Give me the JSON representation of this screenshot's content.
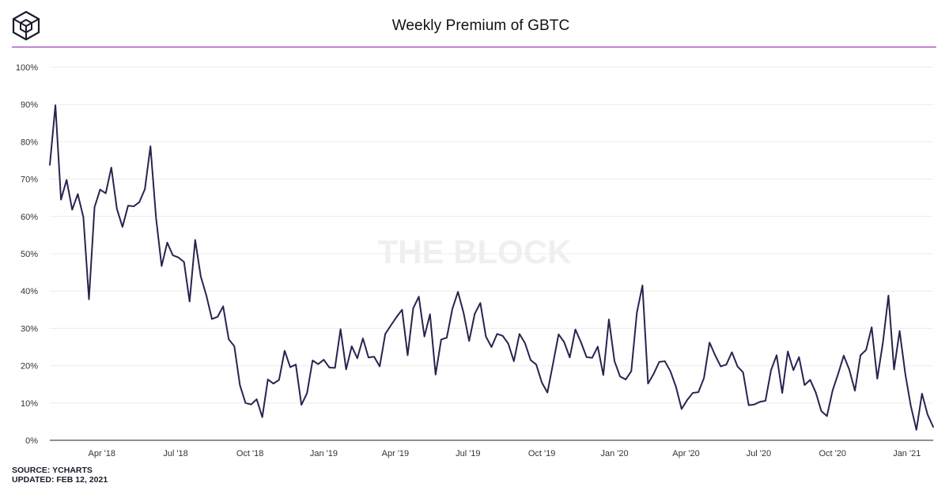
{
  "header": {
    "title": "Weekly Premium of GBTC"
  },
  "watermark": "THE BLOCK",
  "footer": {
    "source": "SOURCE: YCHARTS",
    "updated": "UPDATED: FEB 12, 2021"
  },
  "colors": {
    "line": "#2a2350",
    "accent_rule": "#8a1fa8",
    "grid": "#ececec",
    "watermark": "#efefef"
  },
  "chart_data": {
    "type": "line",
    "title": "Weekly Premium of GBTC",
    "xlabel": "",
    "ylabel": "",
    "ylim": [
      0,
      100
    ],
    "y_ticks": [
      0,
      10,
      20,
      30,
      40,
      50,
      60,
      70,
      80,
      90,
      100
    ],
    "y_tick_labels": [
      "0%",
      "10%",
      "20%",
      "30%",
      "40%",
      "50%",
      "60%",
      "70%",
      "80%",
      "90%",
      "100%"
    ],
    "x_ticks": [
      {
        "x": 9.3,
        "label": "Apr '18"
      },
      {
        "x": 22.5,
        "label": "Jul '18"
      },
      {
        "x": 35.8,
        "label": "Oct '18"
      },
      {
        "x": 49.0,
        "label": "Jan '19"
      },
      {
        "x": 61.8,
        "label": "Apr '19"
      },
      {
        "x": 74.8,
        "label": "Jul '19"
      },
      {
        "x": 88.0,
        "label": "Oct '19"
      },
      {
        "x": 101.0,
        "label": "Jan '20"
      },
      {
        "x": 113.8,
        "label": "Apr '20"
      },
      {
        "x": 126.8,
        "label": "Jul '20"
      },
      {
        "x": 140.0,
        "label": "Oct '20"
      },
      {
        "x": 153.3,
        "label": "Jan '21"
      }
    ],
    "grid": true,
    "legend": "none",
    "series": [
      {
        "values": [
          73.8,
          89.8,
          64.5,
          69.8,
          61.8,
          66.0,
          59.8,
          37.8,
          62.5,
          67.2,
          66.2,
          73.1,
          62.0,
          57.2,
          62.9,
          62.7,
          63.8,
          67.3,
          78.8,
          59.6,
          46.7,
          53.0,
          49.6,
          49.0,
          47.8,
          37.2,
          53.7,
          43.9,
          38.8,
          32.5,
          33.1,
          35.9,
          27.1,
          25.2,
          14.8,
          10.0,
          9.6,
          11.0,
          6.2,
          16.3,
          15.2,
          16.2,
          24.0,
          19.6,
          20.3,
          9.5,
          12.6,
          21.4,
          20.4,
          21.6,
          19.5,
          19.4,
          29.8,
          19.0,
          25.2,
          22.0,
          27.3,
          22.2,
          22.4,
          19.8,
          28.5,
          30.8,
          33.0,
          35.0,
          22.8,
          35.4,
          38.5,
          27.8,
          33.8,
          17.6,
          27.0,
          27.5,
          35.2,
          39.8,
          34.2,
          26.6,
          33.9,
          36.8,
          27.8,
          25.0,
          28.5,
          28.0,
          25.9,
          21.2,
          28.5,
          26.0,
          21.5,
          20.3,
          15.5,
          12.8,
          20.5,
          28.4,
          26.3,
          22.2,
          29.7,
          26.3,
          22.3,
          22.1,
          25.1,
          17.5,
          32.4,
          21.2,
          17.1,
          16.3,
          18.5,
          34.2,
          41.5,
          15.2,
          17.8,
          21.0,
          21.2,
          18.5,
          14.3,
          8.4,
          10.8,
          12.7,
          12.9,
          16.7,
          26.2,
          22.8,
          19.8,
          20.3,
          23.6,
          19.8,
          18.2,
          9.4,
          9.6,
          10.3,
          10.6,
          18.8,
          22.8,
          12.7,
          23.8,
          18.8,
          22.3,
          14.8,
          16.2,
          12.8,
          7.8,
          6.5,
          13.3,
          17.8,
          22.7,
          18.9,
          13.3,
          22.8,
          24.2,
          30.3,
          16.5,
          26.1,
          38.8,
          19.0,
          29.3,
          17.9,
          9.2,
          2.8,
          12.5,
          6.9,
          3.6
        ]
      }
    ]
  }
}
